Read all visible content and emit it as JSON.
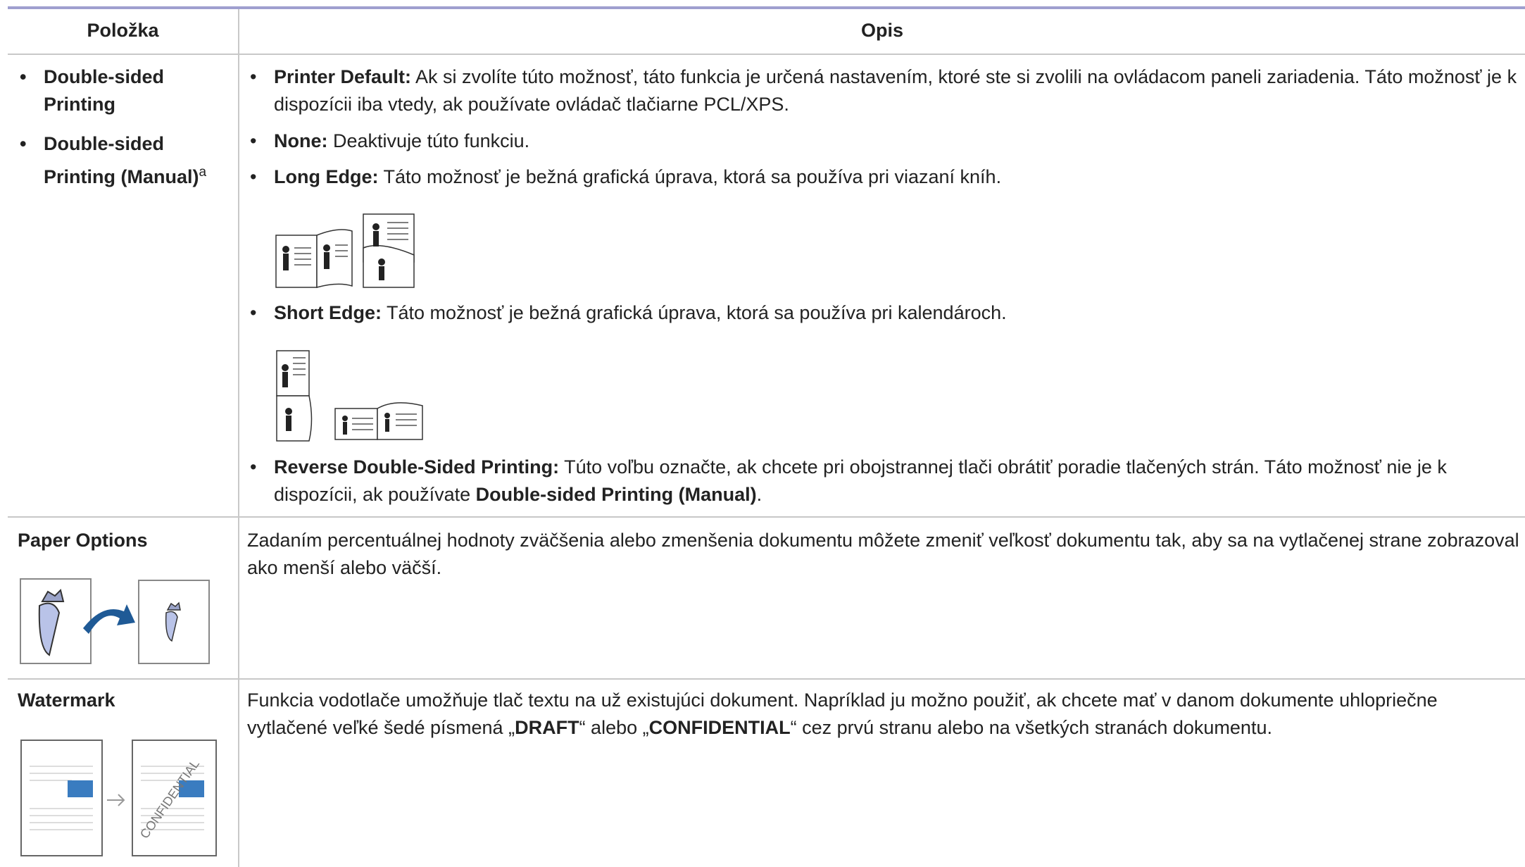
{
  "table": {
    "header": [
      "Položka",
      "Opis"
    ],
    "rows": [
      {
        "item": [
          {
            "label": "Double-sided Printing"
          },
          {
            "label": "Double-sided Printing (Manual)",
            "sup": "a"
          }
        ],
        "description": [
          {
            "term": "Printer Default:",
            "text": "Ak si zvolíte túto možnosť, táto funkcia je určená nastavením, ktoré ste si zvolili na ovládacom paneli zariadenia. Táto možnosť je k dispozícii iba vtedy, ak používate ovládač tlačiarne PCL/XPS."
          },
          {
            "term": "None:",
            "text": "Deaktivuje túto funkciu."
          },
          {
            "term": "Long Edge:",
            "text": "Táto možnosť je bežná grafická úprava, ktorá sa používa pri viazaní kníh."
          },
          {
            "term": "Short Edge:",
            "text": "Táto možnosť je bežná grafická úprava, ktorá sa používa pri kalendároch."
          },
          {
            "term": "Reverse Double-Sided Printing:",
            "text": "Túto voľbu označte, ak chcete pri obojstrannej tlači obrátiť poradie tlačených strán. Táto možnosť nie je k dispozícii, ak používate",
            "term2": "Double-sided Printing (Manual)",
            "end": "."
          }
        ]
      },
      {
        "item": [
          {
            "label": "Paper Options"
          }
        ],
        "description": [
          {
            "text": "Zadaním percentuálnej hodnoty zväčšenia alebo zmenšenia dokumentu môžete zmeniť veľkosť dokumentu tak, aby sa na vytlačenej strane zobrazoval ako menší alebo väčší."
          }
        ]
      },
      {
        "item": [
          {
            "label": "Watermark",
            "image_text": "CONFIDENTIAL"
          }
        ],
        "description": [
          {
            "text": "Funkcia vodotlače umožňuje tlač textu na už existujúci dokument. Napríklad ju možno použiť, ak chcete mať v danom dokumente uhlopriečne vytlačené veľké šedé písmená „",
            "term": "DRAFT",
            "text2": "“ alebo „",
            "term2": "CONFIDENTIAL",
            "end": "“ cez prvú stranu alebo na všetkých stranách dokumentu."
          }
        ]
      }
    ]
  }
}
